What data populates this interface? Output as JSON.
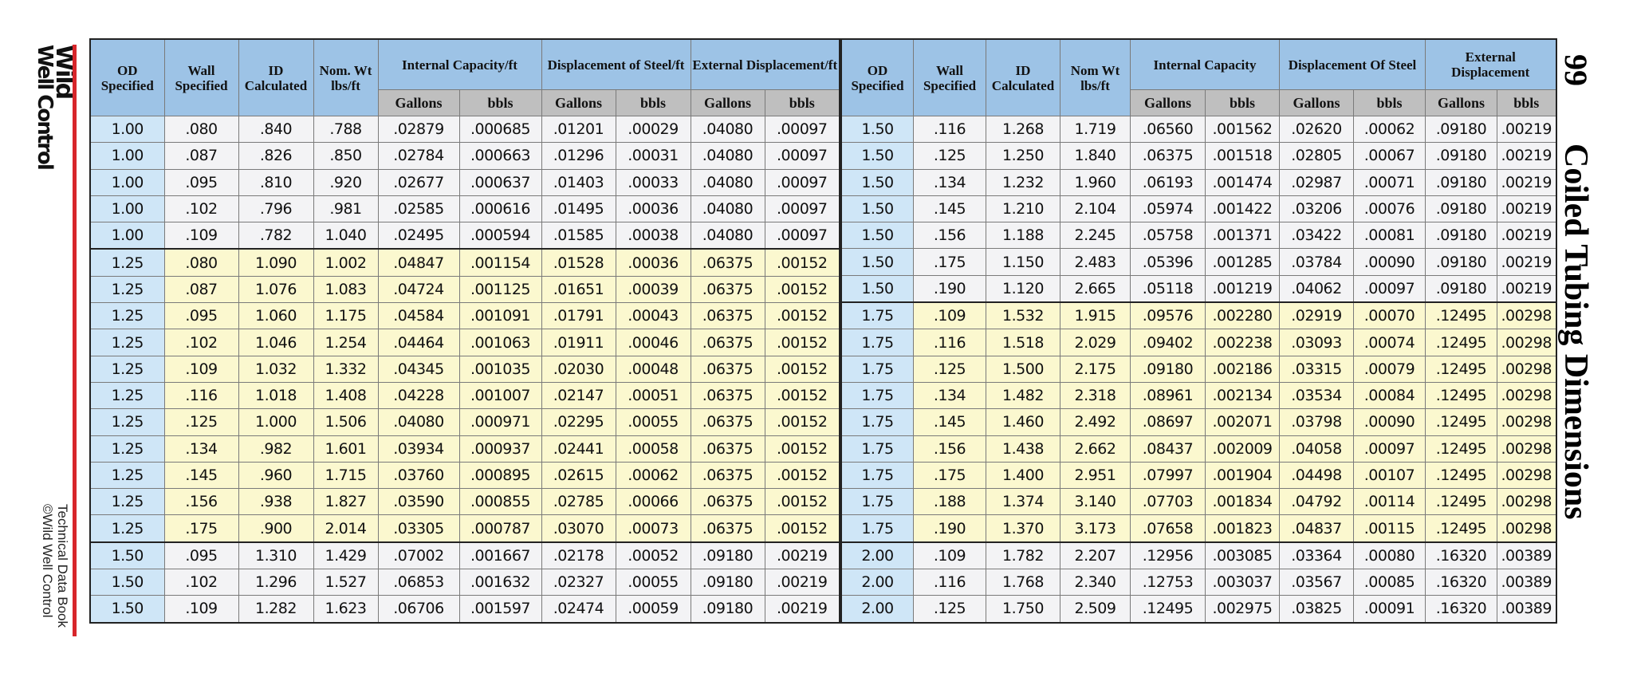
{
  "logo": {
    "line1": "Wild",
    "line2": "Well Control"
  },
  "footer": {
    "line1": "Technical Data Book",
    "line2": "©Wild Well Control"
  },
  "page_number": "99",
  "title": "Coiled Tubing Dimensions",
  "tables": [
    {
      "headers": [
        "OD Specified",
        "Wall Specified",
        "ID Calculated",
        "Nom. Wt lbs/ft",
        "Internal Capacity/ft",
        "Displacement of Steel/ft",
        "External Displacement/ft"
      ],
      "subheaders": [
        "Gallons",
        "bbls",
        "Gallons",
        "bbls",
        "Gallons",
        "bbls"
      ],
      "rows": [
        [
          "1.00",
          ".080",
          ".840",
          ".788",
          ".02879",
          ".000685",
          ".01201",
          ".00029",
          ".04080",
          ".00097"
        ],
        [
          "1.00",
          ".087",
          ".826",
          ".850",
          ".02784",
          ".000663",
          ".01296",
          ".00031",
          ".04080",
          ".00097"
        ],
        [
          "1.00",
          ".095",
          ".810",
          ".920",
          ".02677",
          ".000637",
          ".01403",
          ".00033",
          ".04080",
          ".00097"
        ],
        [
          "1.00",
          ".102",
          ".796",
          ".981",
          ".02585",
          ".000616",
          ".01495",
          ".00036",
          ".04080",
          ".00097"
        ],
        [
          "1.00",
          ".109",
          ".782",
          "1.040",
          ".02495",
          ".000594",
          ".01585",
          ".00038",
          ".04080",
          ".00097"
        ],
        [
          "1.25",
          ".080",
          "1.090",
          "1.002",
          ".04847",
          ".001154",
          ".01528",
          ".00036",
          ".06375",
          ".00152"
        ],
        [
          "1.25",
          ".087",
          "1.076",
          "1.083",
          ".04724",
          ".001125",
          ".01651",
          ".00039",
          ".06375",
          ".00152"
        ],
        [
          "1.25",
          ".095",
          "1.060",
          "1.175",
          ".04584",
          ".001091",
          ".01791",
          ".00043",
          ".06375",
          ".00152"
        ],
        [
          "1.25",
          ".102",
          "1.046",
          "1.254",
          ".04464",
          ".001063",
          ".01911",
          ".00046",
          ".06375",
          ".00152"
        ],
        [
          "1.25",
          ".109",
          "1.032",
          "1.332",
          ".04345",
          ".001035",
          ".02030",
          ".00048",
          ".06375",
          ".00152"
        ],
        [
          "1.25",
          ".116",
          "1.018",
          "1.408",
          ".04228",
          ".001007",
          ".02147",
          ".00051",
          ".06375",
          ".00152"
        ],
        [
          "1.25",
          ".125",
          "1.000",
          "1.506",
          ".04080",
          ".000971",
          ".02295",
          ".00055",
          ".06375",
          ".00152"
        ],
        [
          "1.25",
          ".134",
          ".982",
          "1.601",
          ".03934",
          ".000937",
          ".02441",
          ".00058",
          ".06375",
          ".00152"
        ],
        [
          "1.25",
          ".145",
          ".960",
          "1.715",
          ".03760",
          ".000895",
          ".02615",
          ".00062",
          ".06375",
          ".00152"
        ],
        [
          "1.25",
          ".156",
          ".938",
          "1.827",
          ".03590",
          ".000855",
          ".02785",
          ".00066",
          ".06375",
          ".00152"
        ],
        [
          "1.25",
          ".175",
          ".900",
          "2.014",
          ".03305",
          ".000787",
          ".03070",
          ".00073",
          ".06375",
          ".00152"
        ],
        [
          "1.50",
          ".095",
          "1.310",
          "1.429",
          ".07002",
          ".001667",
          ".02178",
          ".00052",
          ".09180",
          ".00219"
        ],
        [
          "1.50",
          ".102",
          "1.296",
          "1.527",
          ".06853",
          ".001632",
          ".02327",
          ".00055",
          ".09180",
          ".00219"
        ],
        [
          "1.50",
          ".109",
          "1.282",
          "1.623",
          ".06706",
          ".001597",
          ".02474",
          ".00059",
          ".09180",
          ".00219"
        ]
      ]
    },
    {
      "headers": [
        "OD Specified",
        "Wall Specified",
        "ID Calculated",
        "Nom Wt lbs/ft",
        "Internal Capacity",
        "Displacement Of Steel",
        "External Displacement"
      ],
      "subheaders": [
        "Gallons",
        "bbls",
        "Gallons",
        "bbls",
        "Gallons",
        "bbls"
      ],
      "rows": [
        [
          "1.50",
          ".116",
          "1.268",
          "1.719",
          ".06560",
          ".001562",
          ".02620",
          ".00062",
          ".09180",
          ".00219"
        ],
        [
          "1.50",
          ".125",
          "1.250",
          "1.840",
          ".06375",
          ".001518",
          ".02805",
          ".00067",
          ".09180",
          ".00219"
        ],
        [
          "1.50",
          ".134",
          "1.232",
          "1.960",
          ".06193",
          ".001474",
          ".02987",
          ".00071",
          ".09180",
          ".00219"
        ],
        [
          "1.50",
          ".145",
          "1.210",
          "2.104",
          ".05974",
          ".001422",
          ".03206",
          ".00076",
          ".09180",
          ".00219"
        ],
        [
          "1.50",
          ".156",
          "1.188",
          "2.245",
          ".05758",
          ".001371",
          ".03422",
          ".00081",
          ".09180",
          ".00219"
        ],
        [
          "1.50",
          ".175",
          "1.150",
          "2.483",
          ".05396",
          ".001285",
          ".03784",
          ".00090",
          ".09180",
          ".00219"
        ],
        [
          "1.50",
          ".190",
          "1.120",
          "2.665",
          ".05118",
          ".001219",
          ".04062",
          ".00097",
          ".09180",
          ".00219"
        ],
        [
          "1.75",
          ".109",
          "1.532",
          "1.915",
          ".09576",
          ".002280",
          ".02919",
          ".00070",
          ".12495",
          ".00298"
        ],
        [
          "1.75",
          ".116",
          "1.518",
          "2.029",
          ".09402",
          ".002238",
          ".03093",
          ".00074",
          ".12495",
          ".00298"
        ],
        [
          "1.75",
          ".125",
          "1.500",
          "2.175",
          ".09180",
          ".002186",
          ".03315",
          ".00079",
          ".12495",
          ".00298"
        ],
        [
          "1.75",
          ".134",
          "1.482",
          "2.318",
          ".08961",
          ".002134",
          ".03534",
          ".00084",
          ".12495",
          ".00298"
        ],
        [
          "1.75",
          ".145",
          "1.460",
          "2.492",
          ".08697",
          ".002071",
          ".03798",
          ".00090",
          ".12495",
          ".00298"
        ],
        [
          "1.75",
          ".156",
          "1.438",
          "2.662",
          ".08437",
          ".002009",
          ".04058",
          ".00097",
          ".12495",
          ".00298"
        ],
        [
          "1.75",
          ".175",
          "1.400",
          "2.951",
          ".07997",
          ".001904",
          ".04498",
          ".00107",
          ".12495",
          ".00298"
        ],
        [
          "1.75",
          ".188",
          "1.374",
          "3.140",
          ".07703",
          ".001834",
          ".04792",
          ".00114",
          ".12495",
          ".00298"
        ],
        [
          "1.75",
          ".190",
          "1.370",
          "3.173",
          ".07658",
          ".001823",
          ".04837",
          ".00115",
          ".12495",
          ".00298"
        ],
        [
          "2.00",
          ".109",
          "1.782",
          "2.207",
          ".12956",
          ".003085",
          ".03364",
          ".00080",
          ".16320",
          ".00389"
        ],
        [
          "2.00",
          ".116",
          "1.768",
          "2.340",
          ".12753",
          ".003037",
          ".03567",
          ".00085",
          ".16320",
          ".00389"
        ],
        [
          "2.00",
          ".125",
          "1.750",
          "2.509",
          ".12495",
          ".002975",
          ".03825",
          ".00091",
          ".16320",
          ".00389"
        ]
      ]
    }
  ]
}
